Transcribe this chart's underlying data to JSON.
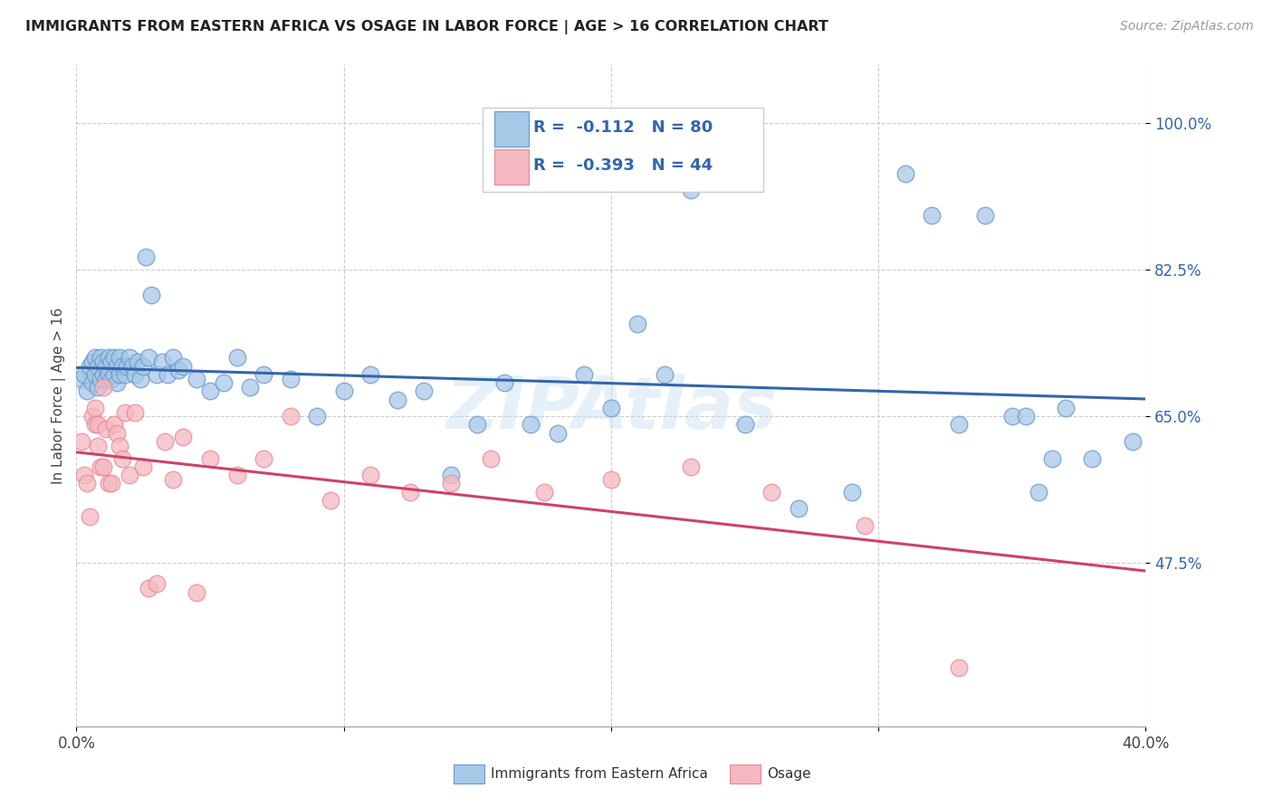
{
  "title": "IMMIGRANTS FROM EASTERN AFRICA VS OSAGE IN LABOR FORCE | AGE > 16 CORRELATION CHART",
  "source": "Source: ZipAtlas.com",
  "ylabel": "In Labor Force | Age > 16",
  "ytick_labels": [
    "47.5%",
    "65.0%",
    "82.5%",
    "100.0%"
  ],
  "ytick_values": [
    0.475,
    0.65,
    0.825,
    1.0
  ],
  "xlim": [
    0.0,
    0.4
  ],
  "ylim": [
    0.28,
    1.07
  ],
  "blue_color": "#a8c8e8",
  "pink_color": "#f4b8c0",
  "blue_edge_color": "#6699cc",
  "pink_edge_color": "#e88898",
  "blue_line_color": "#3366aa",
  "pink_line_color": "#cc4466",
  "label_color": "#3366aa",
  "R_blue": -0.112,
  "N_blue": 80,
  "R_pink": -0.393,
  "N_pink": 44,
  "watermark": "ZIPAtlas",
  "blue_points_x": [
    0.002,
    0.003,
    0.004,
    0.005,
    0.006,
    0.006,
    0.007,
    0.007,
    0.008,
    0.008,
    0.009,
    0.009,
    0.01,
    0.01,
    0.011,
    0.011,
    0.012,
    0.012,
    0.013,
    0.013,
    0.014,
    0.014,
    0.015,
    0.015,
    0.016,
    0.016,
    0.017,
    0.018,
    0.019,
    0.02,
    0.021,
    0.022,
    0.023,
    0.024,
    0.025,
    0.026,
    0.027,
    0.028,
    0.03,
    0.032,
    0.034,
    0.036,
    0.038,
    0.04,
    0.045,
    0.05,
    0.055,
    0.06,
    0.065,
    0.07,
    0.08,
    0.09,
    0.1,
    0.11,
    0.12,
    0.13,
    0.14,
    0.15,
    0.16,
    0.17,
    0.18,
    0.19,
    0.2,
    0.21,
    0.22,
    0.23,
    0.25,
    0.27,
    0.29,
    0.31,
    0.32,
    0.33,
    0.34,
    0.35,
    0.355,
    0.36,
    0.365,
    0.37,
    0.38,
    0.395
  ],
  "blue_points_y": [
    0.695,
    0.7,
    0.68,
    0.71,
    0.69,
    0.715,
    0.7,
    0.72,
    0.685,
    0.71,
    0.695,
    0.72,
    0.7,
    0.715,
    0.695,
    0.71,
    0.7,
    0.72,
    0.695,
    0.715,
    0.7,
    0.72,
    0.69,
    0.71,
    0.7,
    0.72,
    0.71,
    0.7,
    0.71,
    0.72,
    0.71,
    0.7,
    0.715,
    0.695,
    0.71,
    0.84,
    0.72,
    0.795,
    0.7,
    0.715,
    0.7,
    0.72,
    0.705,
    0.71,
    0.695,
    0.68,
    0.69,
    0.72,
    0.685,
    0.7,
    0.695,
    0.65,
    0.68,
    0.7,
    0.67,
    0.68,
    0.58,
    0.64,
    0.69,
    0.64,
    0.63,
    0.7,
    0.66,
    0.76,
    0.7,
    0.92,
    0.64,
    0.54,
    0.56,
    0.94,
    0.89,
    0.64,
    0.89,
    0.65,
    0.65,
    0.56,
    0.6,
    0.66,
    0.6,
    0.62
  ],
  "pink_points_x": [
    0.002,
    0.003,
    0.004,
    0.005,
    0.006,
    0.007,
    0.007,
    0.008,
    0.008,
    0.009,
    0.01,
    0.01,
    0.011,
    0.012,
    0.013,
    0.014,
    0.015,
    0.016,
    0.017,
    0.018,
    0.02,
    0.022,
    0.025,
    0.027,
    0.03,
    0.033,
    0.036,
    0.04,
    0.045,
    0.05,
    0.06,
    0.07,
    0.08,
    0.095,
    0.11,
    0.125,
    0.14,
    0.155,
    0.175,
    0.2,
    0.23,
    0.26,
    0.295,
    0.33
  ],
  "pink_points_y": [
    0.62,
    0.58,
    0.57,
    0.53,
    0.65,
    0.66,
    0.64,
    0.64,
    0.615,
    0.59,
    0.59,
    0.685,
    0.635,
    0.57,
    0.57,
    0.64,
    0.63,
    0.615,
    0.6,
    0.655,
    0.58,
    0.655,
    0.59,
    0.445,
    0.45,
    0.62,
    0.575,
    0.625,
    0.44,
    0.6,
    0.58,
    0.6,
    0.65,
    0.55,
    0.58,
    0.56,
    0.57,
    0.6,
    0.56,
    0.575,
    0.59,
    0.56,
    0.52,
    0.35
  ]
}
